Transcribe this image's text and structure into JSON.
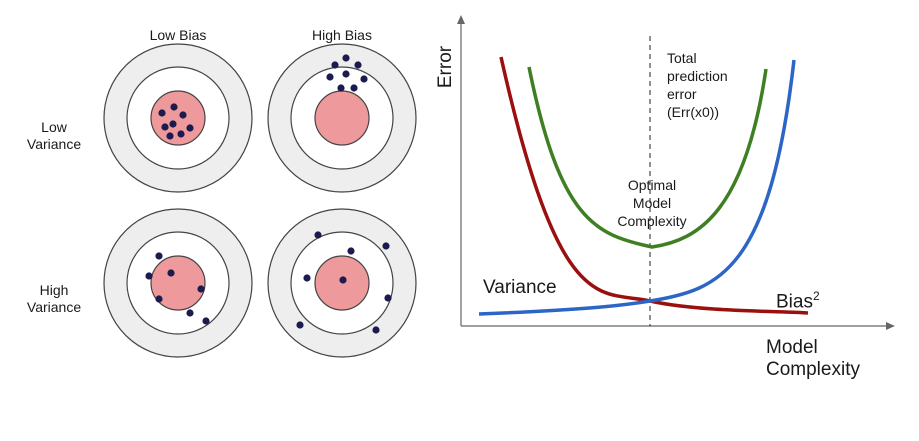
{
  "targets": {
    "col_headers": [
      "Low Bias",
      "High Bias"
    ],
    "row_headers": [
      {
        "line1": "Low",
        "line2": "Variance"
      },
      {
        "line1": "High",
        "line2": "Variance"
      }
    ]
  },
  "graph": {
    "y_axis_label": "Error",
    "x_axis_label_line1": "Model",
    "x_axis_label_line2": "Complexity",
    "total_error_label": [
      "Total",
      "prediction",
      "error",
      "(Err(x0))"
    ],
    "optimal_label": [
      "Optimal",
      "Model",
      "Complexity"
    ],
    "variance_label": "Variance",
    "bias_label": "Bias",
    "bias_superscript": "2"
  },
  "colors": {
    "ring_outer": "#eeeeee",
    "ring_inner": "#ffffff",
    "bullseye": "#ee9a9c",
    "dot": "#1c1b4f",
    "variance_curve": "#9b0f0f",
    "bias_curve": "#2b66c7",
    "total_curve": "#3f7f24",
    "axis": "#666666"
  }
}
